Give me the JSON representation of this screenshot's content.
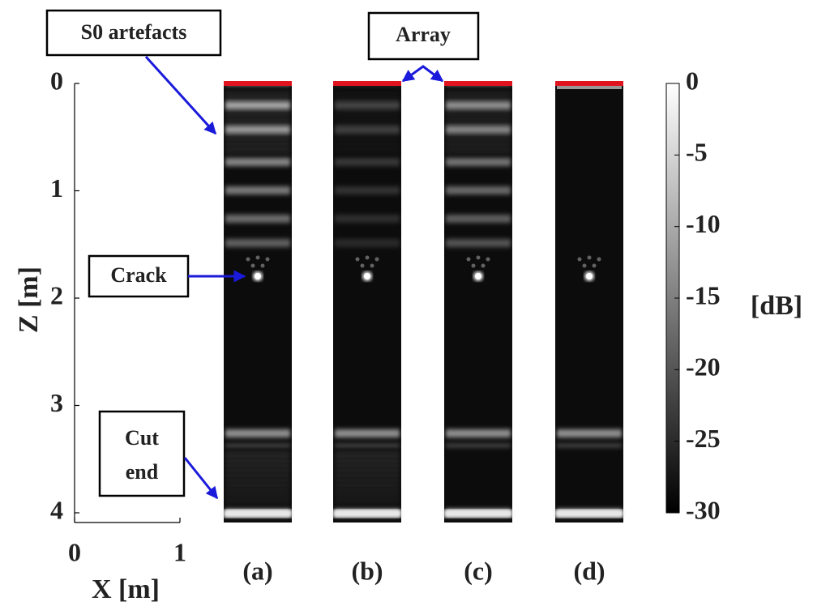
{
  "labels": {
    "s0": "S0 artefacts",
    "array": "Array",
    "crack": "Crack",
    "cut_end": [
      "Cut",
      "end"
    ]
  },
  "z_axis": {
    "label": "Z [m]",
    "ticks": [
      0,
      1,
      2,
      3,
      4
    ]
  },
  "x_axis": {
    "label": "X [m]",
    "ticks": [
      0,
      1
    ]
  },
  "panels": [
    "(a)",
    "(b)",
    "(c)",
    "(d)"
  ],
  "colorbar": {
    "label": "[dB]",
    "ticks": [
      0,
      -5,
      -10,
      -15,
      -20,
      -25,
      -30
    ]
  }
}
